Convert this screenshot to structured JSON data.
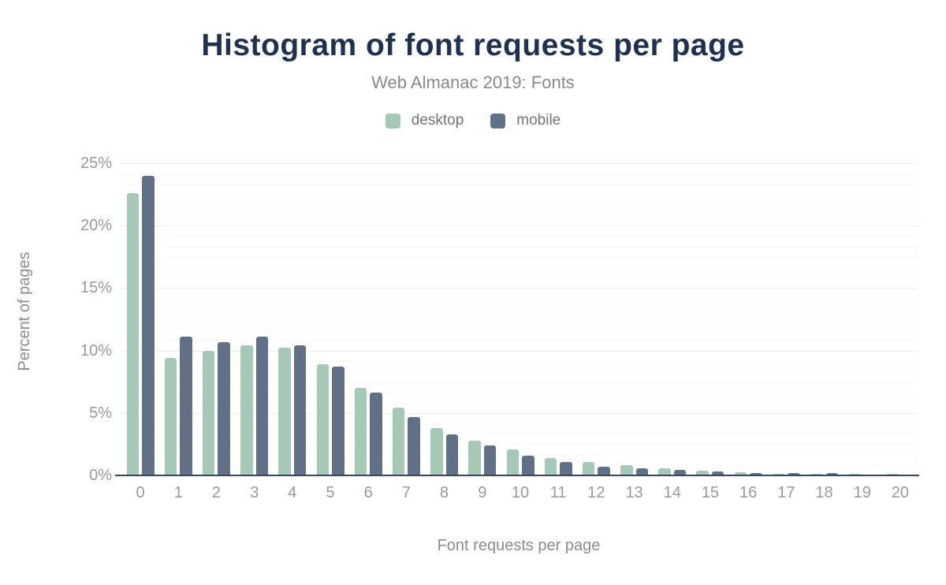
{
  "header": {
    "title": "Histogram of font requests per page",
    "subtitle": "Web Almanac 2019: Fonts"
  },
  "colors": {
    "title_text": "#1e3150",
    "muted_text": "#8c8c8c",
    "tick_text": "#9a9a9a",
    "axis_line": "#37475f",
    "desktop": "#a5c9b7",
    "mobile": "#5f7087",
    "gridline_minor": "#f7f7f7",
    "gridline_major": "#eeeeee"
  },
  "chart_data": {
    "type": "bar",
    "title": "Histogram of font requests per page",
    "subtitle": "Web Almanac 2019: Fonts",
    "xlabel": "Font requests per page",
    "ylabel": "Percent of pages",
    "categories": [
      "0",
      "1",
      "2",
      "3",
      "4",
      "5",
      "6",
      "7",
      "8",
      "9",
      "10",
      "11",
      "12",
      "13",
      "14",
      "15",
      "16",
      "17",
      "18",
      "19",
      "20"
    ],
    "series": [
      {
        "name": "desktop",
        "color": "#a5c9b7",
        "values": [
          22.6,
          9.4,
          10.0,
          10.4,
          10.2,
          8.9,
          7.0,
          5.4,
          3.8,
          2.8,
          2.1,
          1.4,
          1.1,
          0.8,
          0.55,
          0.4,
          0.28,
          0.15,
          0.15,
          0.15,
          0.15
        ]
      },
      {
        "name": "mobile",
        "color": "#5f7087",
        "values": [
          24.0,
          11.1,
          10.7,
          11.1,
          10.4,
          8.7,
          6.6,
          4.7,
          3.3,
          2.4,
          1.6,
          1.1,
          0.7,
          0.55,
          0.45,
          0.3,
          0.2,
          0.2,
          0.2,
          0.06,
          0.06
        ]
      }
    ],
    "y_ticks": [
      {
        "value": 0,
        "label": "0%"
      },
      {
        "value": 5,
        "label": "5%"
      },
      {
        "value": 10,
        "label": "10%"
      },
      {
        "value": 15,
        "label": "15%"
      },
      {
        "value": 20,
        "label": "20%"
      },
      {
        "value": 25,
        "label": "25%"
      }
    ],
    "ylim": [
      0,
      25
    ],
    "grid": "horizontal-only, minor lines at 5/6 subdivisions of each 5% interval",
    "legend_position": "top-center"
  }
}
